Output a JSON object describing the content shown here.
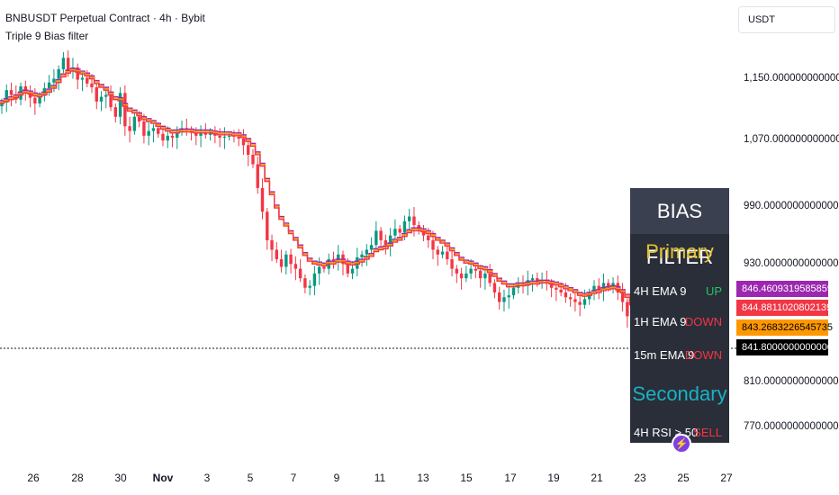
{
  "header": {
    "title": "BNBUSDT Perpetual Contract · 4h · Bybit",
    "subtitle": "Triple 9 Bias filter"
  },
  "currency_selector": {
    "value": "USDT"
  },
  "price_axis": {
    "labels": [
      "1,150.0000000000000",
      "1,070.0000000000000",
      "990.0000000000000",
      "930.0000000000000",
      "810.0000000000000",
      "770.0000000000000"
    ]
  },
  "price_tags": [
    {
      "value": "846.4609319585859",
      "bg": "#9c27b0",
      "fg": "#ffffff"
    },
    {
      "value": "844.8811020802139",
      "bg": "#f23645",
      "fg": "#ffffff"
    },
    {
      "value": "843.2683226545735",
      "bg": "#ff9800",
      "fg": "#000000"
    },
    {
      "value": "841.8000000000000",
      "bg": "#000000",
      "fg": "#ffffff"
    }
  ],
  "time_axis": {
    "labels": [
      "26",
      "28",
      "30",
      "Nov",
      "3",
      "5",
      "7",
      "9",
      "11",
      "13",
      "15",
      "17",
      "19",
      "21",
      "23",
      "25",
      "27"
    ]
  },
  "bias_table": {
    "title": "BIAS FILTER",
    "primary_heading": "Primary",
    "secondary_heading": "Secondary",
    "rows": [
      {
        "label": "4H EMA 9",
        "status": "UP",
        "color": "#22c55e"
      },
      {
        "label": "1H EMA 9",
        "status": "DOWN",
        "color": "#f23645"
      },
      {
        "label": "15m EMA 9",
        "status": "DOWN",
        "color": "#f23645"
      }
    ],
    "secondary_row": {
      "label": "4H RSI > 50",
      "status": "SELL",
      "color": "#f23645"
    }
  },
  "colors": {
    "up_candle": "#089981",
    "down_candle": "#f23645",
    "ema_4h": "#f23645",
    "ema_1h": "#9c27b0",
    "ema_15m": "#ff9800"
  },
  "chart_data": {
    "type": "candlestick",
    "series": [
      {
        "name": "4H EMA 9",
        "color": "#f23645"
      },
      {
        "name": "1H EMA 9",
        "color": "#9c27b0"
      },
      {
        "name": "15m EMA 9",
        "color": "#ff9800"
      }
    ],
    "close": [
      1125,
      1138,
      1133,
      1128,
      1142,
      1135,
      1130,
      1124,
      1132,
      1140,
      1146,
      1150,
      1160,
      1172,
      1158,
      1162,
      1149,
      1151,
      1145,
      1141,
      1126,
      1131,
      1133,
      1120,
      1110,
      1135,
      1100,
      1095,
      1110,
      1105,
      1090,
      1095,
      1098,
      1092,
      1085,
      1090,
      1088,
      1094,
      1098,
      1096,
      1093,
      1090,
      1093,
      1091,
      1094,
      1090,
      1088,
      1089,
      1090,
      1089,
      1087,
      1080,
      1070,
      1060,
      1035,
      1010,
      980,
      970,
      960,
      952,
      965,
      955,
      950,
      940,
      930,
      932,
      945,
      952,
      950,
      960,
      958,
      965,
      955,
      945,
      950,
      962,
      965,
      970,
      975,
      990,
      980,
      975,
      985,
      992,
      988,
      1000,
      1005,
      996,
      990,
      985,
      980,
      970,
      965,
      968,
      960,
      950,
      945,
      940,
      945,
      950,
      948,
      940,
      945,
      935,
      925,
      915,
      920,
      922,
      930,
      935,
      932,
      938,
      940,
      935,
      938,
      935,
      930,
      928,
      925,
      920,
      918,
      915,
      912,
      918,
      925,
      932,
      928,
      935,
      930,
      935,
      925,
      915,
      900,
      880,
      870,
      845,
      828,
      820,
      826,
      828,
      832,
      835,
      838,
      840,
      842
    ],
    "ema_4h": [
      1124,
      1126,
      1128,
      1130,
      1133,
      1135,
      1134,
      1132,
      1131,
      1133,
      1136,
      1140,
      1146,
      1152,
      1156,
      1158,
      1157,
      1155,
      1153,
      1150,
      1145,
      1141,
      1138,
      1133,
      1128,
      1127,
      1121,
      1116,
      1114,
      1111,
      1107,
      1105,
      1103,
      1100,
      1097,
      1095,
      1093,
      1093,
      1094,
      1094,
      1094,
      1093,
      1093,
      1093,
      1093,
      1092,
      1091,
      1091,
      1091,
      1090,
      1090,
      1088,
      1084,
      1079,
      1070,
      1058,
      1042,
      1028,
      1014,
      1002,
      995,
      987,
      980,
      972,
      964,
      958,
      955,
      954,
      953,
      955,
      955,
      957,
      957,
      955,
      954,
      955,
      957,
      960,
      963,
      968,
      970,
      971,
      974,
      978,
      980,
      984,
      988,
      990,
      990,
      989,
      987,
      984,
      980,
      977,
      974,
      969,
      964,
      959,
      956,
      955,
      953,
      950,
      949,
      946,
      942,
      937,
      934,
      931,
      931,
      932,
      932,
      933,
      934,
      934,
      935,
      935,
      934,
      933,
      931,
      929,
      927,
      925,
      922,
      921,
      922,
      924,
      925,
      927,
      928,
      929,
      928,
      925,
      920,
      912,
      904,
      892,
      879,
      867,
      859,
      853,
      849,
      846,
      845,
      844,
      844
    ],
    "ylim": [
      745,
      1195
    ]
  }
}
